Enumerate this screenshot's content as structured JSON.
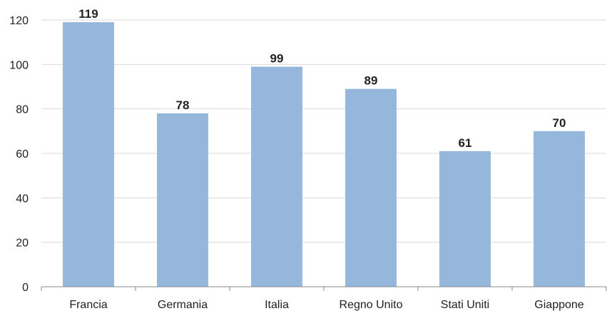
{
  "chart_data": {
    "type": "bar",
    "categories": [
      "Francia",
      "Germania",
      "Italia",
      "Regno Unito",
      "Stati Uniti",
      "Giappone"
    ],
    "values": [
      119,
      78,
      99,
      89,
      61,
      70
    ],
    "value_labels": [
      "119",
      "78",
      "99",
      "89",
      "61",
      "70"
    ],
    "title": "",
    "xlabel": "",
    "ylabel": "",
    "ylim": [
      0,
      120
    ],
    "yticks": [
      0,
      20,
      40,
      60,
      80,
      100,
      120
    ],
    "grid": true,
    "legend": "none",
    "bar_color": "#95b7dc",
    "grid_color": "#d9d9d9",
    "axis_color": "#888888"
  }
}
